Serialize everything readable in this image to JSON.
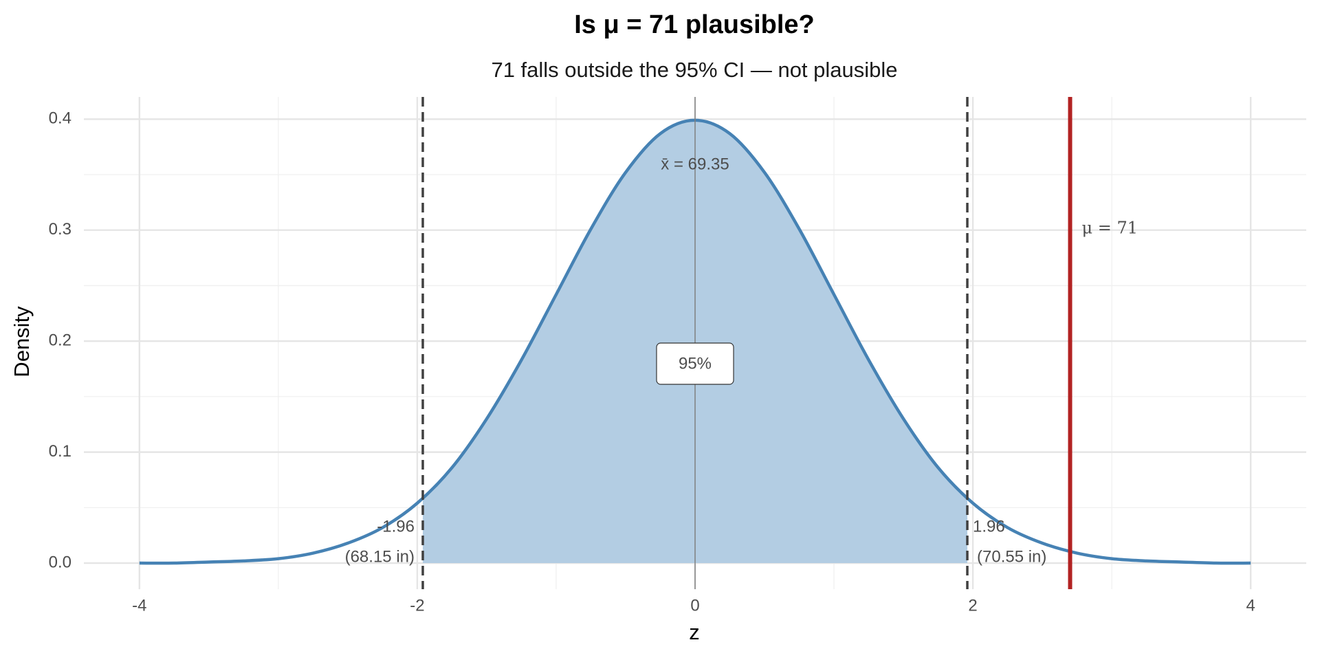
{
  "chart_data": {
    "type": "line",
    "title": "Is μ = 71 plausible?",
    "subtitle": "71 falls outside the 95% CI — not plausible",
    "x_label": "z",
    "y_label": "Density",
    "x": [
      -4,
      -3.75,
      -3.5,
      -3.25,
      -3,
      -2.75,
      -2.5,
      -2.25,
      -2,
      -1.75,
      -1.5,
      -1.25,
      -1,
      -0.75,
      -0.5,
      -0.25,
      0,
      0.25,
      0.5,
      0.75,
      1,
      1.25,
      1.5,
      1.75,
      2,
      2.25,
      2.5,
      2.75,
      3,
      3.25,
      3.5,
      3.75,
      4
    ],
    "series": [
      {
        "name": "Density",
        "color": "#4682b4",
        "values": [
          0.0,
          0.0,
          0.001,
          0.002,
          0.004,
          0.009,
          0.018,
          0.032,
          0.054,
          0.086,
          0.13,
          0.183,
          0.242,
          0.301,
          0.352,
          0.387,
          0.399,
          0.387,
          0.352,
          0.301,
          0.242,
          0.183,
          0.13,
          0.086,
          0.054,
          0.032,
          0.018,
          0.009,
          0.004,
          0.002,
          0.001,
          0.0,
          0.0
        ]
      }
    ],
    "area_color": "#b3cde3",
    "xlim": [
      -4.4,
      4.4
    ],
    "ylim": [
      -0.0235,
      0.42
    ],
    "xticks": [
      -4,
      -2,
      0,
      2,
      4
    ],
    "yticks": [
      0.0,
      0.1,
      0.2,
      0.3,
      0.4
    ],
    "grid": true,
    "critical_lines": [
      {
        "z": -1.96,
        "label": "(68.15 in)"
      },
      {
        "z": 1.96,
        "label": "(70.55 in)"
      }
    ],
    "mean_line": {
      "z": 0,
      "label": "x̄ = 69.35"
    },
    "mu_line": {
      "z": 2.7,
      "label": "μ = 71",
      "color": "#b22222"
    },
    "center_label": "95%"
  }
}
